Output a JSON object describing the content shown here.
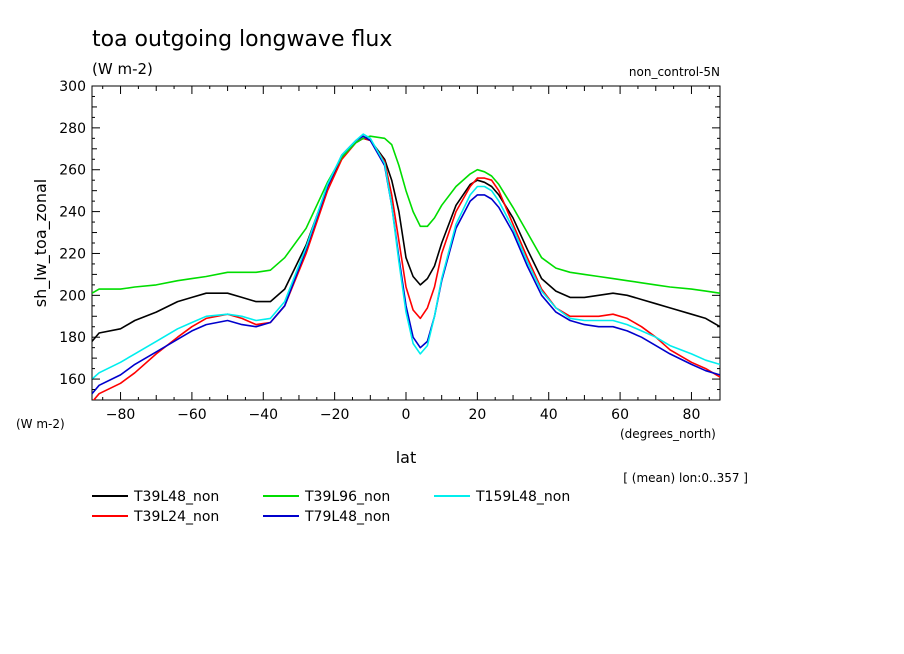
{
  "chart_data": {
    "type": "line",
    "title": "toa outgoing longwave flux",
    "subtitle": "(W m-2)",
    "top_right_label": "non_control-5N",
    "ylabel": "sh_lw_toa_zonal",
    "y_units_label": "(W m-2)",
    "xlabel": "lat",
    "x_units_label": "(degrees_north)",
    "footnote": "[ (mean) lon:0..357 ]",
    "xlim": [
      -88,
      88
    ],
    "ylim": [
      150,
      300
    ],
    "x_ticks": [
      -80,
      -60,
      -40,
      -20,
      0,
      20,
      40,
      60,
      80
    ],
    "y_ticks": [
      160,
      180,
      200,
      220,
      240,
      260,
      280,
      300
    ],
    "legend_position": "bottom-left",
    "grid": false,
    "series": [
      {
        "name": "T39L48_non",
        "color": "#000000",
        "x": [
          -88,
          -86,
          -80,
          -76,
          -70,
          -64,
          -60,
          -56,
          -50,
          -46,
          -42,
          -38,
          -34,
          -28,
          -22,
          -18,
          -14,
          -12,
          -10,
          -6,
          -4,
          -2,
          0,
          2,
          4,
          6,
          8,
          10,
          14,
          18,
          20,
          22,
          24,
          26,
          30,
          34,
          38,
          42,
          46,
          50,
          54,
          58,
          62,
          66,
          70,
          74,
          80,
          84,
          88
        ],
        "y": [
          178,
          182,
          184,
          188,
          192,
          197,
          199,
          201,
          201,
          199,
          197,
          197,
          203,
          224,
          252,
          266,
          273,
          275,
          274,
          265,
          255,
          240,
          218,
          209,
          205,
          208,
          214,
          225,
          243,
          253,
          255,
          254,
          252,
          248,
          237,
          222,
          208,
          202,
          199,
          199,
          200,
          201,
          200,
          198,
          196,
          194,
          191,
          189,
          185
        ]
      },
      {
        "name": "T39L24_non",
        "color": "#ff0000",
        "x": [
          -88,
          -86,
          -80,
          -76,
          -70,
          -64,
          -60,
          -56,
          -50,
          -46,
          -42,
          -38,
          -34,
          -28,
          -22,
          -18,
          -14,
          -12,
          -10,
          -6,
          -4,
          -2,
          0,
          2,
          4,
          6,
          8,
          10,
          14,
          18,
          20,
          22,
          24,
          26,
          30,
          34,
          38,
          42,
          46,
          50,
          54,
          58,
          62,
          66,
          70,
          74,
          80,
          84,
          88
        ],
        "y": [
          149,
          153,
          158,
          163,
          172,
          180,
          185,
          189,
          191,
          189,
          186,
          187,
          195,
          220,
          250,
          265,
          273,
          275,
          274,
          264,
          248,
          226,
          204,
          193,
          189,
          194,
          204,
          220,
          240,
          252,
          256,
          256,
          255,
          250,
          234,
          218,
          203,
          194,
          190,
          190,
          190,
          191,
          189,
          185,
          180,
          174,
          168,
          165,
          161
        ]
      },
      {
        "name": "T39L96_non",
        "color": "#00dd00",
        "x": [
          -88,
          -86,
          -80,
          -76,
          -70,
          -64,
          -60,
          -56,
          -50,
          -46,
          -42,
          -38,
          -34,
          -28,
          -22,
          -18,
          -14,
          -12,
          -10,
          -6,
          -4,
          -2,
          0,
          2,
          4,
          6,
          8,
          10,
          14,
          18,
          20,
          22,
          24,
          26,
          30,
          34,
          38,
          42,
          46,
          50,
          54,
          58,
          62,
          66,
          70,
          74,
          80,
          84,
          88
        ],
        "y": [
          201,
          203,
          203,
          204,
          205,
          207,
          208,
          209,
          211,
          211,
          211,
          212,
          218,
          232,
          254,
          266,
          273,
          275,
          276,
          275,
          272,
          262,
          250,
          240,
          233,
          233,
          237,
          243,
          252,
          258,
          260,
          259,
          257,
          253,
          242,
          230,
          218,
          213,
          211,
          210,
          209,
          208,
          207,
          206,
          205,
          204,
          203,
          202,
          201
        ]
      },
      {
        "name": "T79L48_non",
        "color": "#0000cc",
        "x": [
          -88,
          -86,
          -80,
          -76,
          -70,
          -64,
          -60,
          -56,
          -50,
          -46,
          -42,
          -38,
          -34,
          -28,
          -22,
          -18,
          -14,
          -12,
          -10,
          -6,
          -4,
          -2,
          0,
          2,
          4,
          6,
          8,
          10,
          14,
          18,
          20,
          22,
          24,
          26,
          30,
          34,
          38,
          42,
          46,
          50,
          54,
          58,
          62,
          66,
          70,
          74,
          80,
          84,
          88
        ],
        "y": [
          153,
          157,
          162,
          167,
          173,
          179,
          183,
          186,
          188,
          186,
          185,
          187,
          195,
          222,
          252,
          267,
          274,
          276,
          274,
          262,
          243,
          218,
          195,
          180,
          175,
          178,
          190,
          207,
          232,
          245,
          248,
          248,
          246,
          242,
          230,
          214,
          200,
          192,
          188,
          186,
          185,
          185,
          183,
          180,
          176,
          172,
          167,
          164,
          162
        ]
      },
      {
        "name": "T159L48_non",
        "color": "#00eeee",
        "x": [
          -88,
          -86,
          -80,
          -76,
          -70,
          -64,
          -60,
          -56,
          -50,
          -46,
          -42,
          -38,
          -34,
          -28,
          -22,
          -18,
          -14,
          -12,
          -10,
          -6,
          -4,
          -2,
          0,
          2,
          4,
          6,
          8,
          10,
          14,
          18,
          20,
          22,
          24,
          26,
          30,
          34,
          38,
          42,
          46,
          50,
          54,
          58,
          62,
          66,
          70,
          74,
          80,
          84,
          88
        ],
        "y": [
          160,
          163,
          168,
          172,
          178,
          184,
          187,
          190,
          191,
          190,
          188,
          189,
          197,
          223,
          253,
          267,
          274,
          277,
          275,
          263,
          243,
          216,
          192,
          177,
          172,
          176,
          190,
          208,
          234,
          248,
          252,
          252,
          250,
          245,
          232,
          216,
          202,
          194,
          189,
          188,
          188,
          188,
          186,
          183,
          180,
          176,
          172,
          169,
          167
        ]
      }
    ]
  }
}
